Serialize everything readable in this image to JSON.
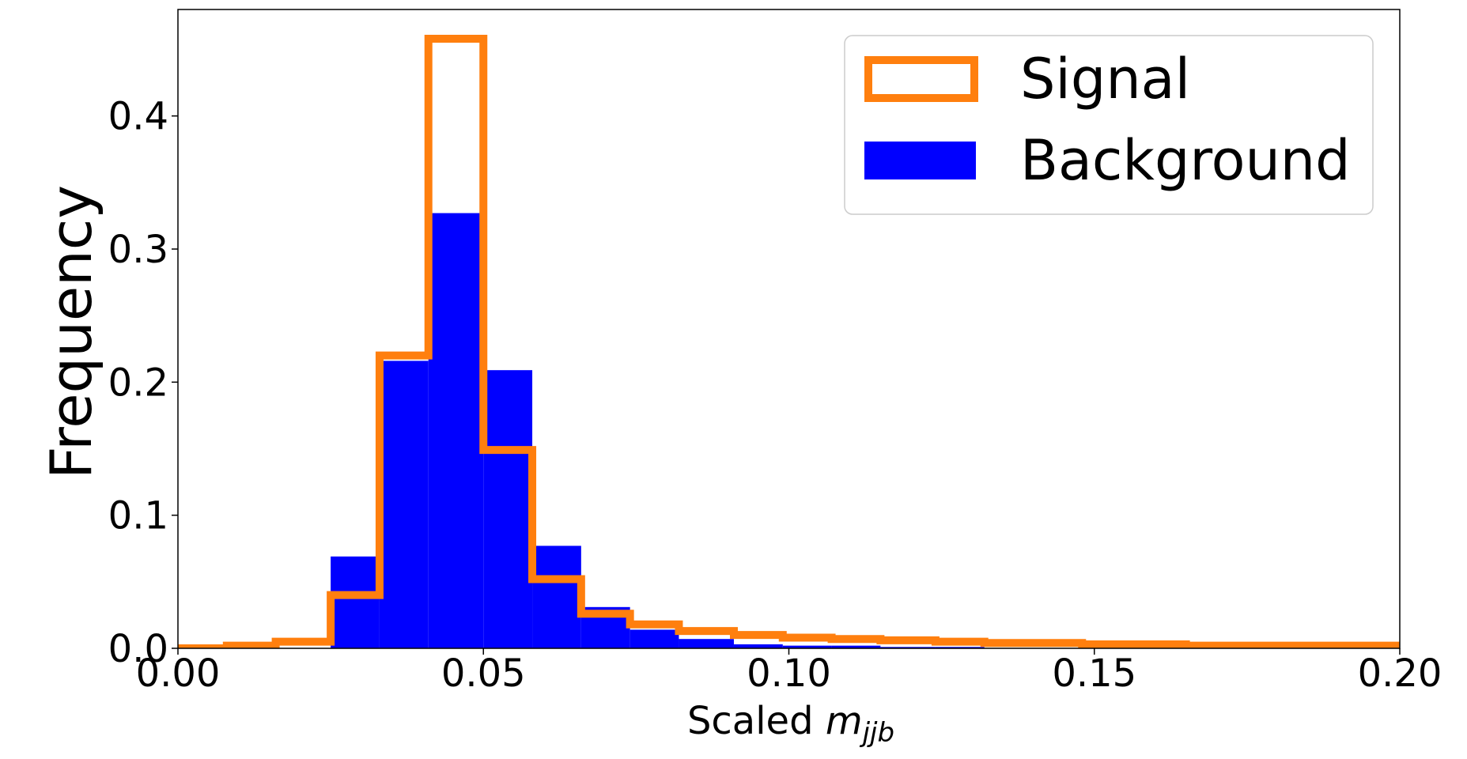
{
  "chart_data": {
    "type": "bar",
    "xlabel_prefix": "Scaled ",
    "xlabel_var": "m",
    "xlabel_sub": "jjb",
    "ylabel": "Frequency",
    "xlim": [
      0.0,
      0.2
    ],
    "ylim": [
      0.0,
      0.48
    ],
    "xticks": [
      "0.00",
      "0.05",
      "0.10",
      "0.15",
      "0.20"
    ],
    "yticks": [
      "0.0",
      "0.1",
      "0.2",
      "0.3",
      "0.4"
    ],
    "bin_edges": [
      0.0,
      0.008,
      0.016,
      0.025,
      0.033,
      0.041,
      0.05,
      0.058,
      0.066,
      0.074,
      0.082,
      0.091,
      0.099,
      0.107,
      0.115,
      0.124,
      0.132,
      0.14,
      0.148,
      0.157,
      0.165,
      0.173,
      0.181,
      0.19,
      0.198,
      0.206
    ],
    "series": [
      {
        "name": "Background",
        "style": "filled",
        "color": "#0000ff",
        "values": [
          0.0,
          0.0,
          0.0,
          0.069,
          0.216,
          0.327,
          0.209,
          0.077,
          0.031,
          0.014,
          0.007,
          0.003,
          0.002,
          0.002,
          0.001,
          0.001,
          0.0,
          0.0,
          0.0,
          0.0,
          0.0,
          0.0,
          0.0,
          0.0,
          0.0
        ]
      },
      {
        "name": "Signal",
        "style": "step",
        "color": "#ff7f0e",
        "values": [
          0.0,
          0.002,
          0.005,
          0.04,
          0.22,
          0.458,
          0.149,
          0.052,
          0.026,
          0.018,
          0.013,
          0.01,
          0.008,
          0.007,
          0.006,
          0.005,
          0.004,
          0.004,
          0.003,
          0.003,
          0.002,
          0.002,
          0.002,
          0.002,
          0.002
        ]
      }
    ],
    "legend_position": "top-right",
    "grid": false
  }
}
